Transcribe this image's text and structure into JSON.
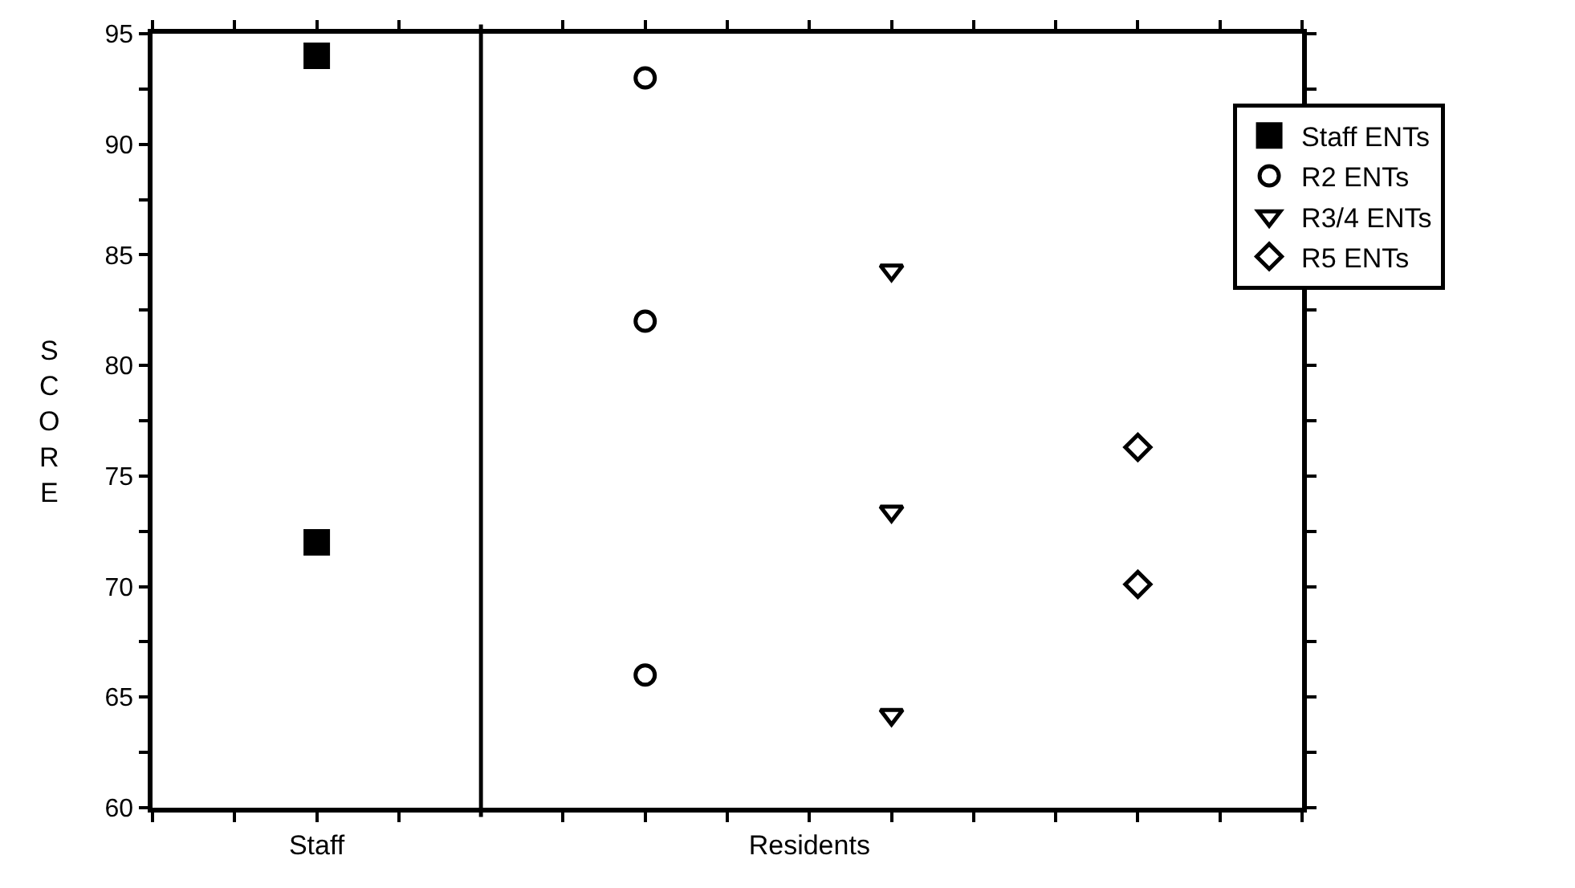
{
  "chart_data": {
    "type": "scatter",
    "ylabel": "SCORE",
    "categories": [
      null,
      null,
      "Staff",
      null,
      null,
      null,
      null,
      null,
      "Residents",
      null,
      null,
      null,
      null,
      null,
      null
    ],
    "ylim": [
      60,
      95
    ],
    "yticks": [
      60,
      {
        "value": 62.5,
        "label": null
      },
      65,
      {
        "value": 67.5,
        "label": null
      },
      70,
      {
        "value": 72.5,
        "label": null
      },
      75,
      {
        "value": 77.5,
        "label": null
      },
      80,
      {
        "value": 82.5,
        "label": null
      },
      85,
      {
        "value": 87.5,
        "label": null
      },
      90,
      {
        "value": 92.5,
        "label": null
      },
      95
    ],
    "series": [
      {
        "name": "Staff ENTs",
        "color": "#000000",
        "marker": "square",
        "values": [
          null,
          null,
          94,
          null,
          null,
          null,
          null,
          null,
          null,
          null,
          null,
          null,
          null,
          null,
          null
        ]
      },
      {
        "color": "#000000",
        "marker": "square",
        "values": [
          null,
          null,
          72,
          null,
          null,
          null,
          null,
          null,
          null,
          null,
          null,
          null,
          null,
          null,
          null
        ]
      },
      {
        "name": "R2 ENTs",
        "color": "#000000",
        "marker": "circle",
        "values": [
          null,
          null,
          null,
          null,
          null,
          null,
          93,
          null,
          null,
          null,
          null,
          null,
          null,
          null,
          null
        ]
      },
      {
        "color": "#000000",
        "marker": "circle",
        "values": [
          null,
          null,
          null,
          null,
          null,
          null,
          82,
          null,
          null,
          null,
          null,
          null,
          null,
          null,
          null
        ]
      },
      {
        "color": "#000000",
        "marker": "circle",
        "values": [
          null,
          null,
          null,
          null,
          null,
          null,
          66,
          null,
          null,
          null,
          null,
          null,
          null,
          null,
          null
        ]
      },
      {
        "name": "R3/4 ENTs",
        "color": "#000000",
        "marker": "triangle",
        "values": [
          null,
          null,
          null,
          null,
          null,
          null,
          null,
          null,
          null,
          84.3,
          null,
          null,
          null,
          null,
          null
        ]
      },
      {
        "color": "#000000",
        "marker": "triangle",
        "values": [
          null,
          null,
          null,
          null,
          null,
          null,
          null,
          null,
          null,
          73.4,
          null,
          null,
          null,
          null,
          null
        ]
      },
      {
        "color": "#000000",
        "marker": "triangle",
        "values": [
          null,
          null,
          null,
          null,
          null,
          null,
          null,
          null,
          null,
          64.2,
          null,
          null,
          null,
          null,
          null
        ]
      },
      {
        "name": "R5 ENTs",
        "color": "#000000",
        "marker": "diamond",
        "values": [
          null,
          null,
          null,
          null,
          null,
          null,
          null,
          null,
          null,
          null,
          null,
          null,
          76.3,
          null,
          null
        ]
      },
      {
        "color": "#000000",
        "marker": "diamond",
        "values": [
          null,
          null,
          null,
          null,
          null,
          null,
          null,
          null,
          null,
          null,
          null,
          null,
          70.1,
          null,
          null
        ]
      }
    ],
    "legend": "top right"
  }
}
